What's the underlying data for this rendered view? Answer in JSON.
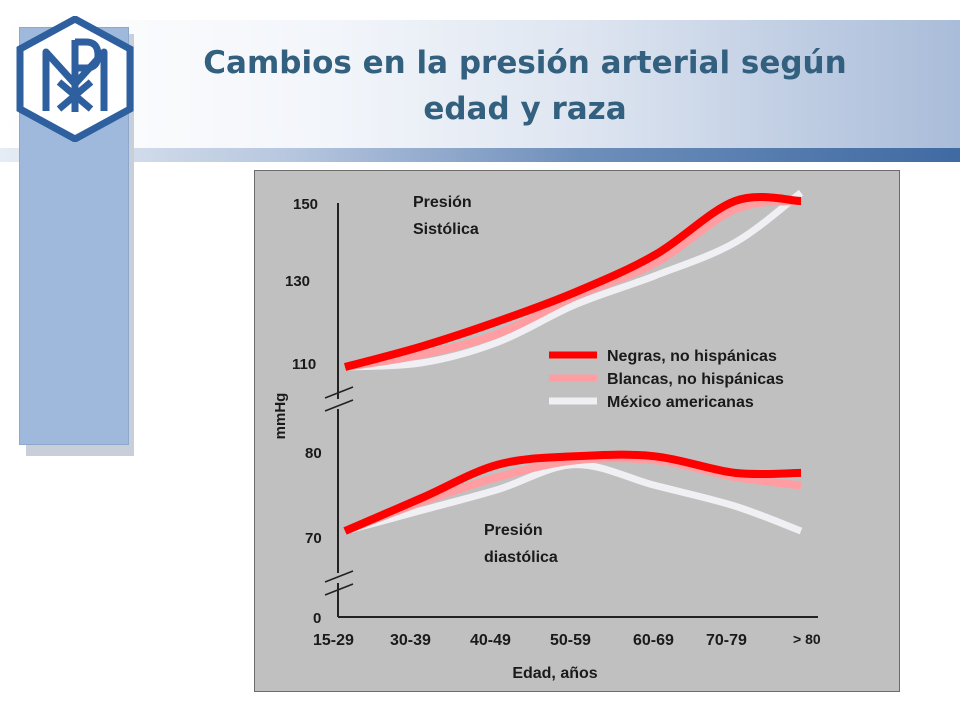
{
  "slide": {
    "title_line1": "Cambios en la presión arterial según",
    "title_line2": "edad y raza",
    "logo": "chi-rho-monogram-logo",
    "colors": {
      "title": "#33607e",
      "band_dark": "#3f6aa2",
      "side_block": "#9fb9dc",
      "chart_bg": "#c0c0c0"
    }
  },
  "chart_data": {
    "type": "line",
    "title": "",
    "xlabel": "Edad, años",
    "ylabel": "mmHg",
    "categories": [
      "15-29",
      "30-39",
      "40-49",
      "50-59",
      "60-69",
      "70-79",
      "> 80"
    ],
    "y_ticks": [
      "150",
      "130",
      "110",
      "80",
      "70",
      "0"
    ],
    "axis_breaks": true,
    "grid": false,
    "legend_position": "right-middle",
    "annotations": {
      "systolic": [
        "Presión",
        "Sistólica"
      ],
      "diastolic": [
        "Presión",
        "diastólica"
      ]
    },
    "series": [
      {
        "name": "Negras, no hispánicas",
        "color": "#ff0000",
        "systolic": [
          110,
          115,
          121,
          128,
          137,
          150,
          150
        ],
        "diastolic": [
          70,
          74,
          78,
          79,
          79,
          77,
          77
        ]
      },
      {
        "name": "Blancas, no hispánicas",
        "color": "#ff9ea2",
        "systolic": [
          110,
          113,
          118,
          127,
          135,
          148,
          150
        ],
        "diastolic": [
          70,
          73.5,
          76.5,
          78.5,
          78.5,
          76.5,
          75.5
        ]
      },
      {
        "name": "México americanas",
        "color": "#f0f0f4",
        "systolic": [
          110,
          111,
          116,
          125,
          132,
          140,
          152
        ],
        "diastolic": [
          70,
          72.5,
          75,
          78,
          75.5,
          73,
          70
        ]
      }
    ]
  }
}
